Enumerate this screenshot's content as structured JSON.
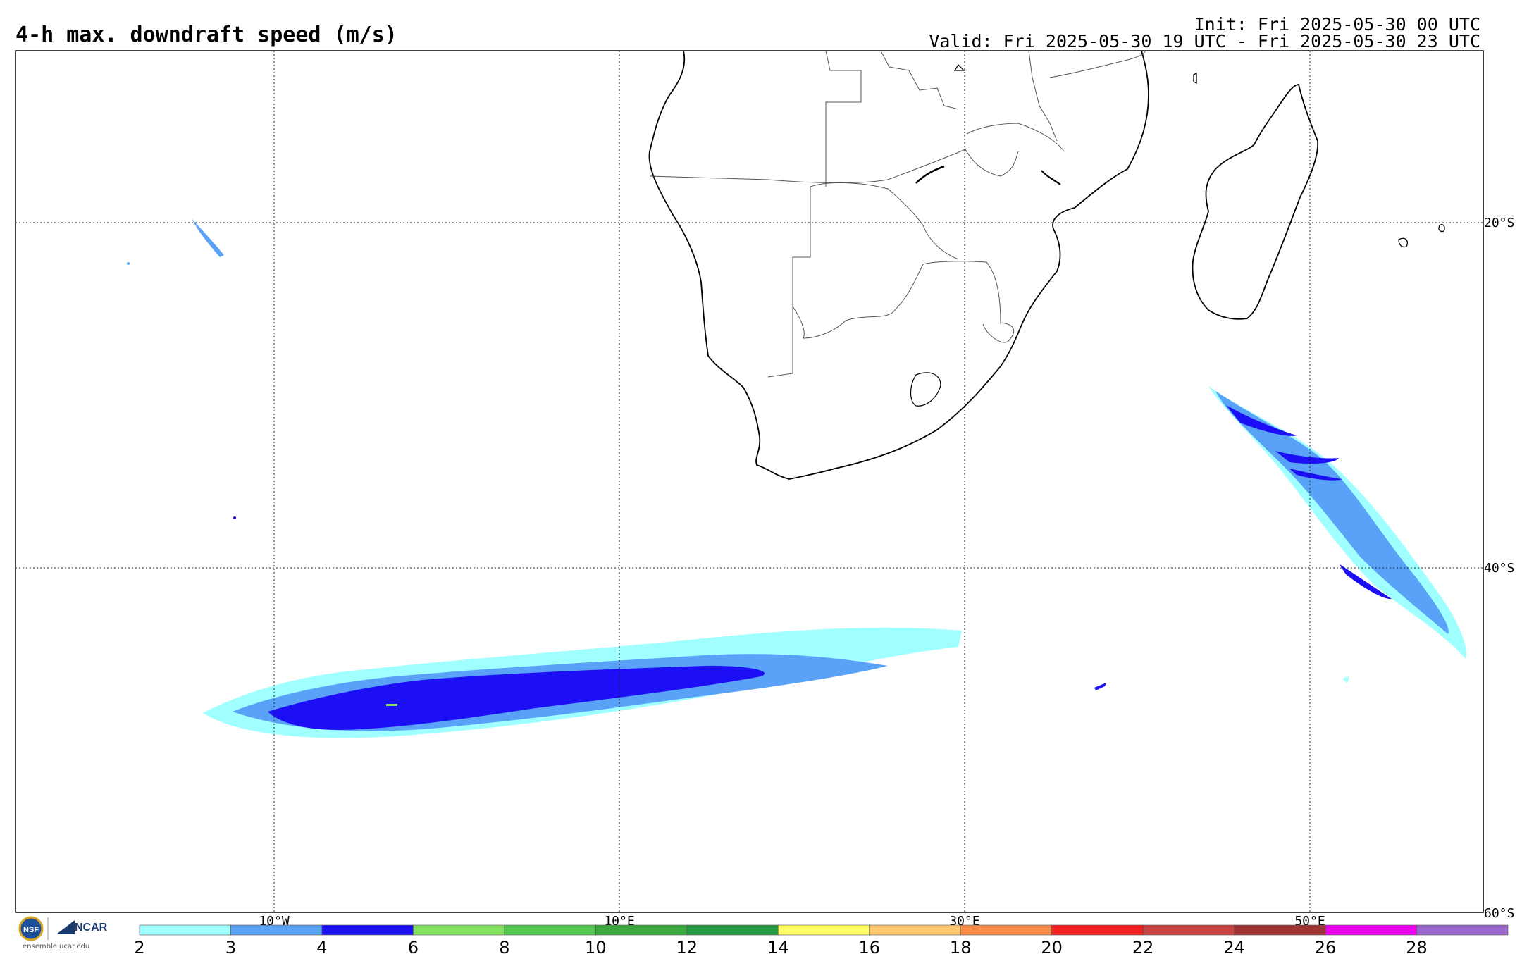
{
  "header": {
    "title": "4-h max. downdraft speed (m/s)",
    "init": "Init: Fri 2025-05-30 00 UTC",
    "valid": "Valid: Fri 2025-05-30 19 UTC - Fri 2025-05-30 23 UTC"
  },
  "map": {
    "lon_labels": [
      "10°W",
      "10°E",
      "30°E",
      "50°E"
    ],
    "lat_labels": [
      "20°S",
      "40°S",
      "60°S"
    ]
  },
  "colorbar": {
    "colors": [
      "#a0ffff",
      "#5aa2f7",
      "#1c0ff5",
      "#81e05e",
      "#52c850",
      "#3aa83c",
      "#259a40",
      "#ffff60",
      "#ffc86e",
      "#fa8c4a",
      "#f82020",
      "#c84040",
      "#a03434",
      "#f000f0",
      "#9966cc"
    ],
    "ticks": [
      "2",
      "3",
      "4",
      "6",
      "8",
      "10",
      "12",
      "14",
      "16",
      "18",
      "20",
      "22",
      "24",
      "26",
      "28"
    ]
  },
  "footer": {
    "org": "NCAR",
    "url": "ensemble.ucar.edu"
  }
}
